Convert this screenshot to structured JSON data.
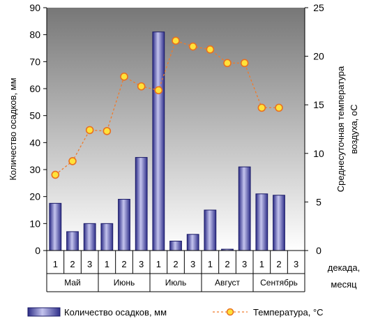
{
  "chart_data": {
    "type": "bar+line",
    "categories": [
      "1",
      "2",
      "3",
      "1",
      "2",
      "3",
      "1",
      "2",
      "3",
      "1",
      "2",
      "3",
      "1",
      "2",
      "3"
    ],
    "months": [
      "Май",
      "Июнь",
      "Июль",
      "Август",
      "Сентябрь"
    ],
    "series": [
      {
        "name": "Количество осадков, мм",
        "type": "bar",
        "axis": "left",
        "values": [
          17.5,
          7,
          10,
          10,
          19,
          34.5,
          81,
          3.5,
          6,
          15,
          0.5,
          31,
          21,
          20.5,
          null
        ]
      },
      {
        "name": "Температура, °С",
        "type": "line",
        "axis": "right",
        "values": [
          7.8,
          9.2,
          12.4,
          12.3,
          17.9,
          16.9,
          16.5,
          21.6,
          21.0,
          20.7,
          19.3,
          19.3,
          14.7,
          14.7,
          null
        ]
      }
    ],
    "ylabel_left": "Количество осадков, мм",
    "ylabel_right_line1": "Среднесуточная температура",
    "ylabel_right_line2": "воздуха, оС",
    "xlabel_line1": "декада,",
    "xlabel_line2": "месяц",
    "ylim_left": [
      0,
      90
    ],
    "ylim_right": [
      0,
      25
    ],
    "yticks_left": [
      "0",
      "10",
      "20",
      "30",
      "40",
      "50",
      "60",
      "70",
      "80",
      "90"
    ],
    "yticks_right": [
      "0",
      "5",
      "10",
      "15",
      "20",
      "25"
    ],
    "legend_placement": "bottom",
    "grid": false,
    "colors": {
      "bar_fill": "#4a4aa8",
      "bar_stroke": "#1a1a66",
      "line": "#f07a2a",
      "marker_fill": "#ffe23a",
      "marker_stroke": "#e87020",
      "plot_bg_top": "#777777",
      "plot_bg_bottom": "#ffffff"
    }
  }
}
